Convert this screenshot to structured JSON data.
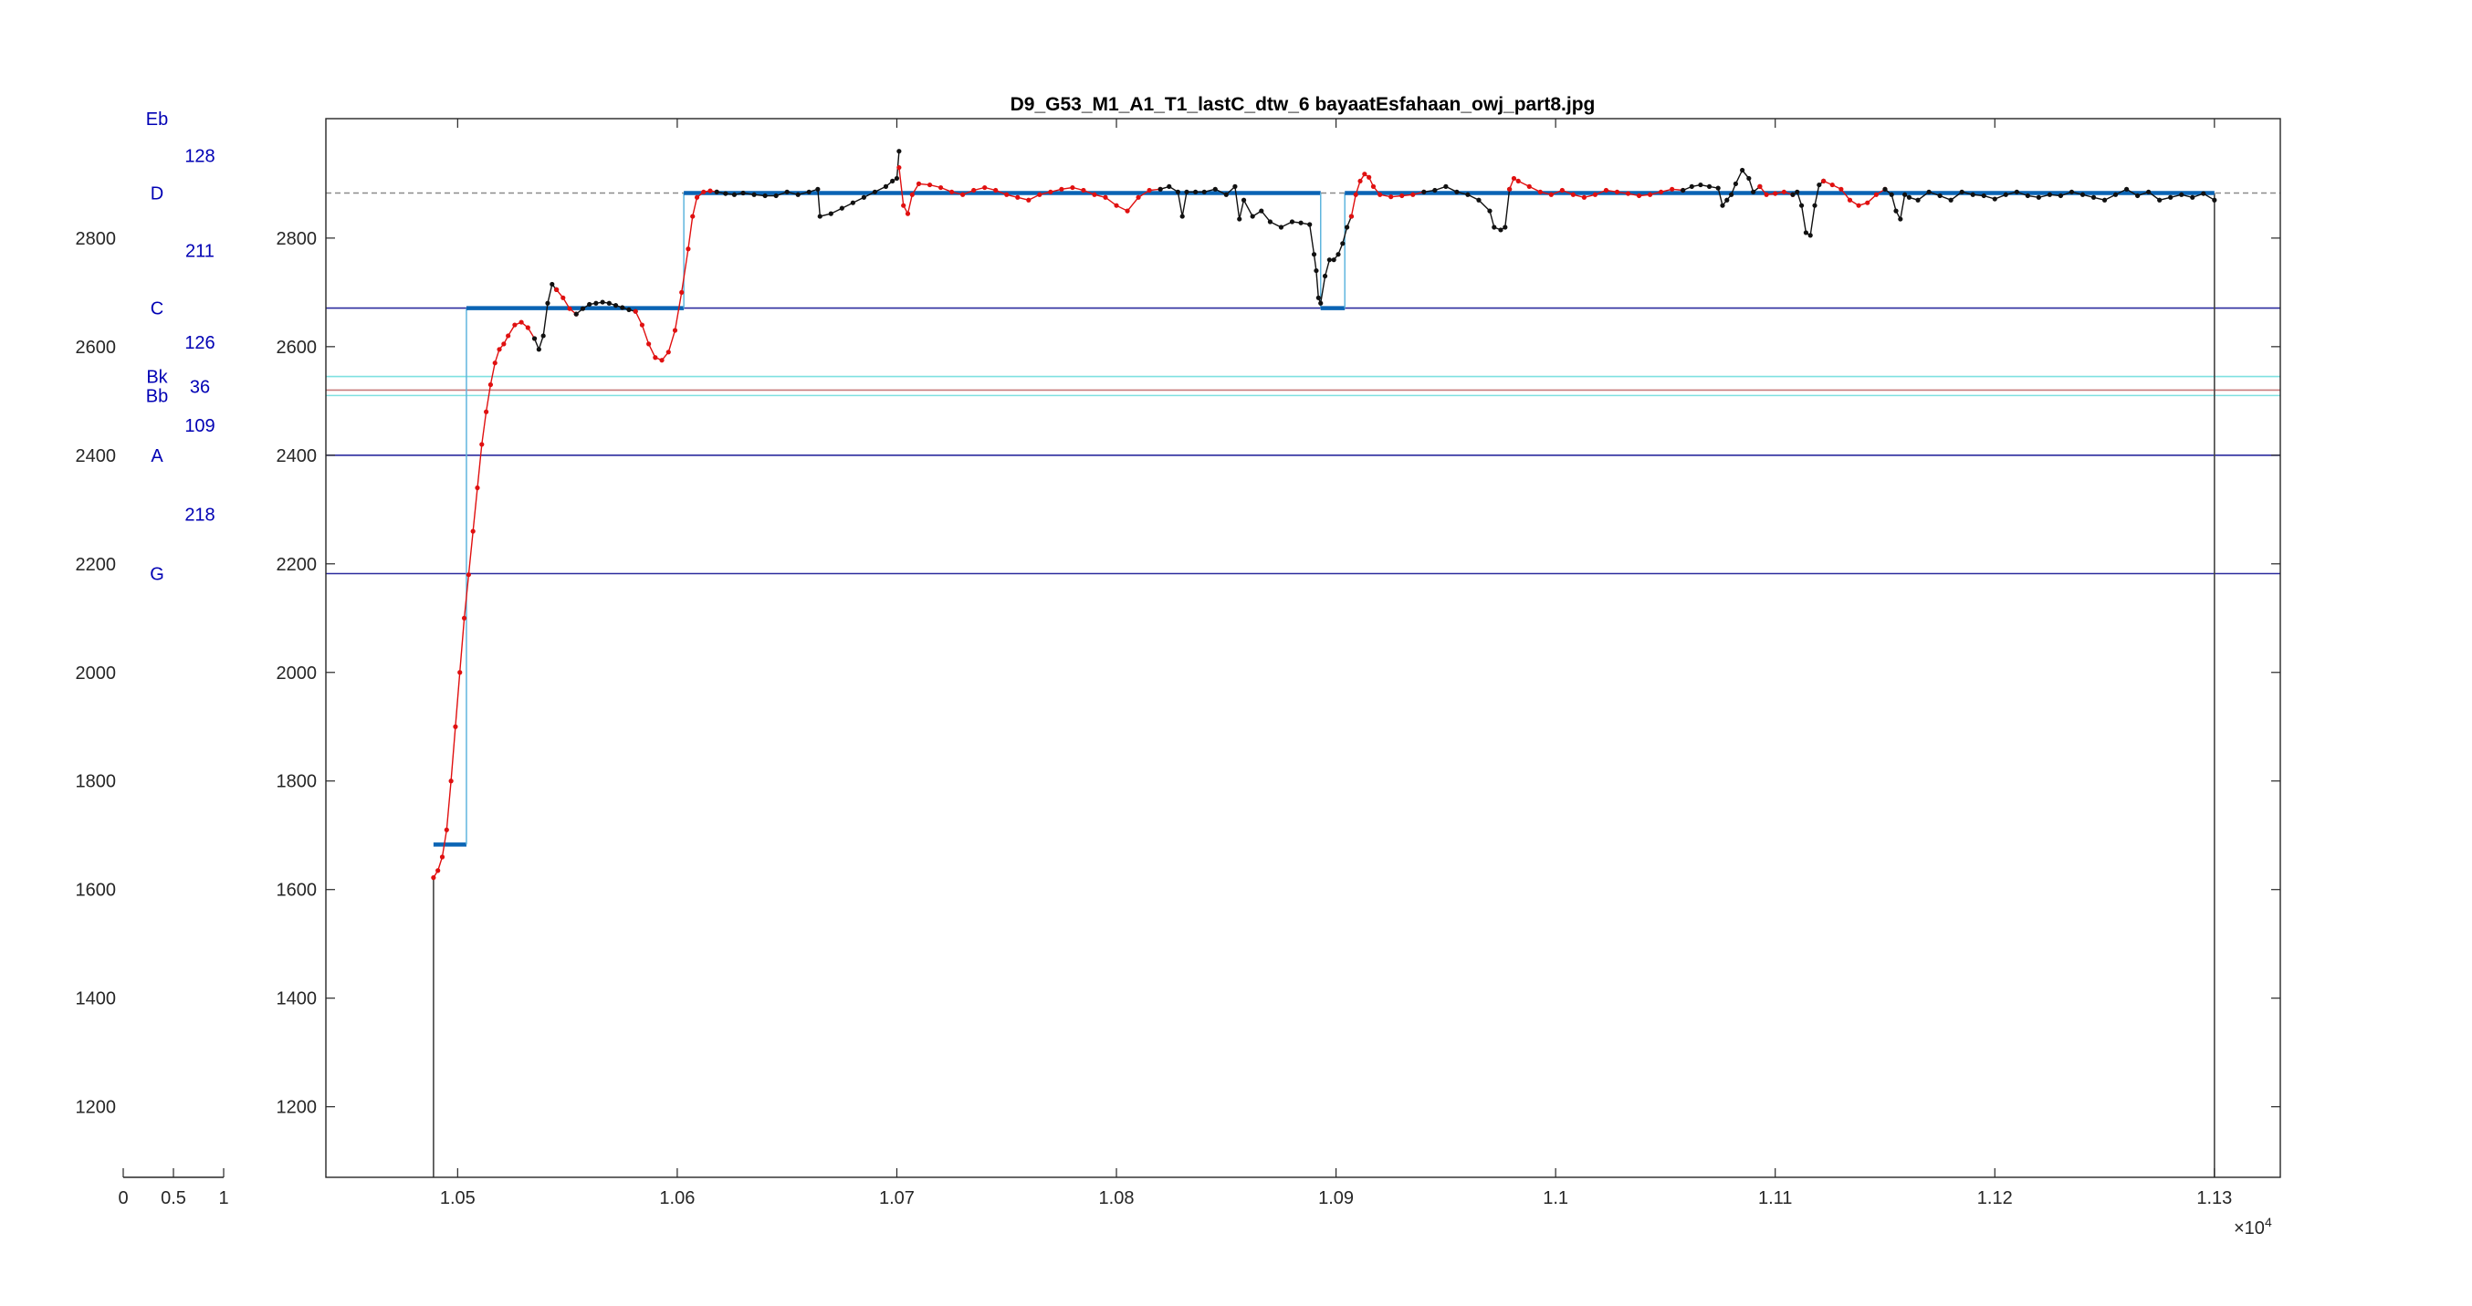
{
  "chart_data": {
    "type": "line",
    "title": "D9_G53_M1_A1_T1_lastC_dtw_6 bayaatEsfahaan_owj_part8.jpg",
    "xlabel": "",
    "ylabel": "",
    "xlim": [
      10440,
      11330
    ],
    "ylim": [
      1070,
      3020
    ],
    "x_exponent_label": "×10",
    "x_exponent_power": "4",
    "xticks": [
      {
        "value": 10500,
        "label": "1.05"
      },
      {
        "value": 10600,
        "label": "1.06"
      },
      {
        "value": 10700,
        "label": "1.07"
      },
      {
        "value": 10800,
        "label": "1.08"
      },
      {
        "value": 10900,
        "label": "1.09"
      },
      {
        "value": 11000,
        "label": "1.1"
      },
      {
        "value": 11100,
        "label": "1.11"
      },
      {
        "value": 11200,
        "label": "1.12"
      },
      {
        "value": 11300,
        "label": "1.13"
      }
    ],
    "yticks": [
      1200,
      1400,
      1600,
      1800,
      2000,
      2200,
      2400,
      2600,
      2800
    ],
    "reference_lines": [
      {
        "y": 2883,
        "color": "#8a8a8a",
        "style": "dashed"
      },
      {
        "y": 2671,
        "color": "#2b2b9e"
      },
      {
        "y": 2545,
        "color": "#7fe0e0"
      },
      {
        "y": 2520,
        "color": "#c77b7b"
      },
      {
        "y": 2510,
        "color": "#7fe0e0"
      },
      {
        "y": 2400,
        "color": "#2b2b9e"
      },
      {
        "y": 2182,
        "color": "#2b2b9e"
      }
    ],
    "vertical_lines": [
      {
        "x": 10489,
        "from": 1070,
        "to": 1625,
        "color": "#444444"
      },
      {
        "x": 11300,
        "from": 1070,
        "to": 2883,
        "color": "#444444"
      }
    ],
    "step_segments": [
      {
        "x0": 10489,
        "x1": 10504,
        "y": 1683
      },
      {
        "x0": 10504,
        "x1": 10603,
        "y": 2671
      },
      {
        "x0": 10603,
        "x1": 10690,
        "y": 2883
      },
      {
        "x0": 10690,
        "x1": 10893,
        "y": 2883
      },
      {
        "x0": 10893,
        "x1": 10904,
        "y": 2671
      },
      {
        "x0": 10904,
        "x1": 11300,
        "y": 2883
      }
    ],
    "step_color": "#0a64b4",
    "step_connector_color": "#5fb5de",
    "series": [
      {
        "color": "#e01010",
        "x": [
          10489,
          10491,
          10493,
          10495,
          10497,
          10499,
          10501,
          10503,
          10505,
          10507,
          10509,
          10511,
          10513,
          10515,
          10517,
          10519,
          10521,
          10523,
          10526,
          10529,
          10532,
          10535
        ],
        "y": [
          1622,
          1635,
          1660,
          1710,
          1800,
          1900,
          2000,
          2100,
          2180,
          2260,
          2340,
          2420,
          2480,
          2530,
          2570,
          2595,
          2605,
          2620,
          2640,
          2645,
          2635,
          2615
        ]
      },
      {
        "color": "#111111",
        "x": [
          10535,
          10537,
          10539,
          10541,
          10543,
          10545
        ],
        "y": [
          2615,
          2595,
          2620,
          2680,
          2715,
          2705
        ]
      },
      {
        "color": "#e01010",
        "x": [
          10545,
          10548,
          10551,
          10554
        ],
        "y": [
          2705,
          2690,
          2670,
          2660
        ]
      },
      {
        "color": "#111111",
        "x": [
          10554,
          10557,
          10560,
          10563,
          10566,
          10569,
          10572,
          10575,
          10578,
          10581
        ],
        "y": [
          2660,
          2670,
          2678,
          2680,
          2682,
          2680,
          2676,
          2672,
          2668,
          2665
        ]
      },
      {
        "color": "#e01010",
        "x": [
          10581,
          10584,
          10587,
          10590,
          10593,
          10596,
          10599,
          10602,
          10605,
          10607,
          10609,
          10612,
          10615,
          10618
        ],
        "y": [
          2665,
          2640,
          2605,
          2580,
          2575,
          2590,
          2630,
          2700,
          2780,
          2840,
          2875,
          2885,
          2887,
          2885
        ]
      },
      {
        "color": "#111111",
        "x": [
          10618,
          10622,
          10626,
          10630,
          10635,
          10640,
          10645,
          10650,
          10655,
          10660,
          10664,
          10665,
          10670,
          10675,
          10680,
          10685,
          10690,
          10695,
          10698,
          10700,
          10701
        ],
        "y": [
          2885,
          2882,
          2880,
          2883,
          2880,
          2878,
          2878,
          2885,
          2880,
          2885,
          2890,
          2840,
          2845,
          2855,
          2865,
          2875,
          2885,
          2895,
          2905,
          2910,
          2960
        ]
      },
      {
        "color": "#e01010",
        "x": [
          10701,
          10703,
          10705,
          10707,
          10710,
          10715,
          10720,
          10725,
          10730,
          10735,
          10740,
          10745,
          10750,
          10755,
          10760,
          10765,
          10770,
          10775,
          10780,
          10785,
          10790,
          10795,
          10800,
          10805,
          10810,
          10815,
          10820
        ],
        "y": [
          2930,
          2860,
          2845,
          2880,
          2900,
          2898,
          2893,
          2885,
          2880,
          2888,
          2893,
          2888,
          2880,
          2875,
          2870,
          2880,
          2885,
          2890,
          2893,
          2888,
          2880,
          2875,
          2860,
          2850,
          2875,
          2888,
          2890
        ]
      },
      {
        "color": "#111111",
        "x": [
          10820,
          10824,
          10828,
          10830,
          10832,
          10836,
          10840,
          10845,
          10850,
          10854,
          10856,
          10858,
          10862,
          10866,
          10870,
          10875,
          10880,
          10884,
          10888,
          10890,
          10891,
          10892,
          10893,
          10895,
          10897,
          10899,
          10901,
          10903,
          10905,
          10907
        ],
        "y": [
          2890,
          2895,
          2885,
          2840,
          2885,
          2885,
          2885,
          2890,
          2880,
          2895,
          2835,
          2870,
          2840,
          2850,
          2830,
          2820,
          2830,
          2828,
          2825,
          2770,
          2740,
          2690,
          2680,
          2730,
          2760,
          2760,
          2770,
          2790,
          2820,
          2840
        ]
      },
      {
        "color": "#e01010",
        "x": [
          10907,
          10909,
          10911,
          10913,
          10915,
          10917,
          10920,
          10925,
          10930,
          10935,
          10940
        ],
        "y": [
          2840,
          2880,
          2905,
          2918,
          2912,
          2895,
          2880,
          2876,
          2878,
          2880,
          2885
        ]
      },
      {
        "color": "#111111",
        "x": [
          10940,
          10945,
          10950,
          10955,
          10960,
          10965,
          10970,
          10972,
          10975,
          10977,
          10979
        ],
        "y": [
          2885,
          2888,
          2895,
          2885,
          2880,
          2870,
          2850,
          2820,
          2815,
          2820,
          2890
        ]
      },
      {
        "color": "#e01010",
        "x": [
          10979,
          10981,
          10983,
          10988,
          10993,
          10998,
          11003,
          11008,
          11013,
          11018,
          11023,
          11028,
          11033,
          11038,
          11043,
          11048,
          11053,
          11058
        ],
        "y": [
          2890,
          2910,
          2905,
          2895,
          2885,
          2880,
          2888,
          2880,
          2875,
          2880,
          2888,
          2885,
          2882,
          2878,
          2880,
          2885,
          2890,
          2888
        ]
      },
      {
        "color": "#111111",
        "x": [
          11058,
          11062,
          11066,
          11070,
          11074,
          11076,
          11078,
          11080,
          11082,
          11085,
          11088,
          11090,
          11093
        ],
        "y": [
          2888,
          2895,
          2898,
          2895,
          2892,
          2860,
          2870,
          2880,
          2900,
          2925,
          2910,
          2885,
          2895
        ]
      },
      {
        "color": "#e01010",
        "x": [
          11093,
          11096,
          11100,
          11104,
          11108
        ],
        "y": [
          2895,
          2880,
          2882,
          2885,
          2880
        ]
      },
      {
        "color": "#111111",
        "x": [
          11108,
          11110,
          11112,
          11114,
          11116,
          11118,
          11120,
          11122
        ],
        "y": [
          2880,
          2885,
          2860,
          2810,
          2805,
          2860,
          2898,
          2905
        ]
      },
      {
        "color": "#e01010",
        "x": [
          11122,
          11126,
          11130,
          11134,
          11138,
          11142,
          11146,
          11150
        ],
        "y": [
          2905,
          2898,
          2890,
          2870,
          2860,
          2865,
          2880,
          2890
        ]
      },
      {
        "color": "#111111",
        "x": [
          11150,
          11153,
          11155,
          11157,
          11159,
          11161,
          11165,
          11170,
          11175,
          11180,
          11185,
          11190,
          11195,
          11200,
          11205,
          11210,
          11215,
          11220,
          11225,
          11230,
          11235,
          11240,
          11245,
          11250,
          11255,
          11260,
          11265,
          11270,
          11275,
          11280,
          11285,
          11290,
          11295,
          11300
        ],
        "y": [
          2890,
          2880,
          2850,
          2835,
          2880,
          2875,
          2870,
          2885,
          2878,
          2870,
          2885,
          2880,
          2878,
          2872,
          2880,
          2885,
          2878,
          2875,
          2880,
          2878,
          2885,
          2880,
          2875,
          2870,
          2880,
          2890,
          2878,
          2885,
          2870,
          2875,
          2880,
          2875,
          2882,
          2870
        ]
      }
    ]
  },
  "side_axis": {
    "xlim": [
      0,
      1
    ],
    "xticks": [
      "0",
      "0.5",
      "1"
    ],
    "notes": [
      {
        "label": "Eb",
        "y": 3020
      },
      {
        "label": "D",
        "y": 2883
      },
      {
        "label": "C",
        "y": 2671
      },
      {
        "label": "Bk",
        "y": 2545
      },
      {
        "label": "Bb",
        "y": 2510
      },
      {
        "label": "A",
        "y": 2400
      },
      {
        "label": "G",
        "y": 2182
      }
    ],
    "intervals": [
      {
        "label": "128",
        "y": 2952
      },
      {
        "label": "211",
        "y": 2777
      },
      {
        "label": "126",
        "y": 2608
      },
      {
        "label": "36",
        "y": 2527
      },
      {
        "label": "109",
        "y": 2455
      },
      {
        "label": "218",
        "y": 2291
      }
    ]
  }
}
